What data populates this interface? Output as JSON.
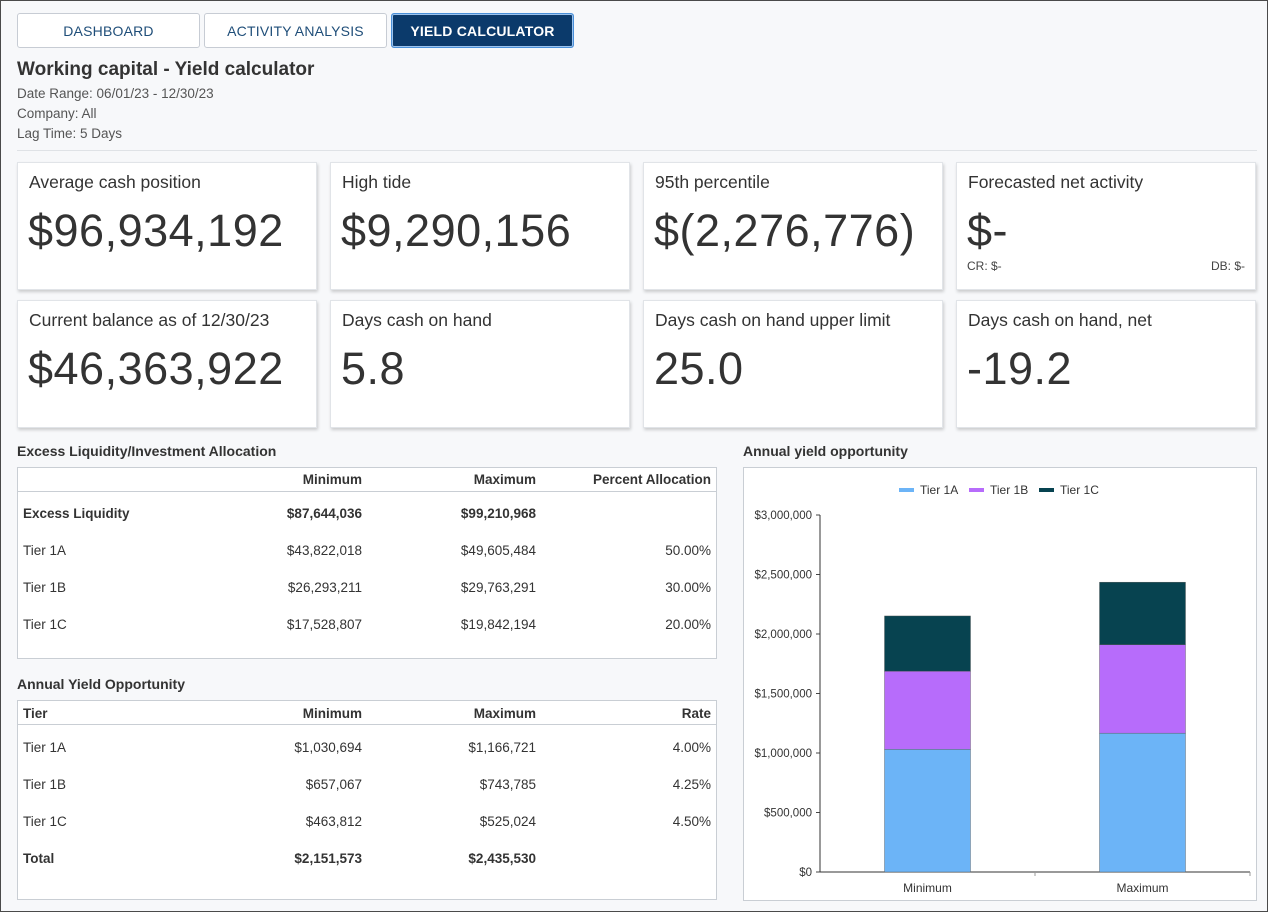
{
  "tabs": [
    {
      "label": "DASHBOARD"
    },
    {
      "label": "ACTIVITY ANALYSIS"
    },
    {
      "label": "YIELD CALCULATOR"
    }
  ],
  "header": {
    "title": "Working capital - Yield calculator",
    "date_range": "Date Range: 06/01/23 - 12/30/23",
    "company": "Company: All",
    "lag_time": "Lag Time: 5 Days"
  },
  "cards": [
    {
      "label": "Average cash position",
      "value": "$96,934,192"
    },
    {
      "label": "High tide",
      "value": "$9,290,156"
    },
    {
      "label": "95th percentile",
      "value": "$(2,276,776)"
    },
    {
      "label": "Forecasted net activity",
      "value": "$-",
      "cr": "CR: $-",
      "db": "DB: $-"
    },
    {
      "label": "Current balance as of 12/30/23",
      "value": "$46,363,922"
    },
    {
      "label": "Days cash on hand",
      "value": "5.8"
    },
    {
      "label": "Days cash on hand upper limit",
      "value": "25.0"
    },
    {
      "label": "Days cash on hand, net",
      "value": "-19.2"
    }
  ],
  "allocation": {
    "title": "Excess Liquidity/Investment Allocation",
    "columns": [
      "",
      "Minimum",
      "Maximum",
      "Percent Allocation"
    ],
    "rows": [
      {
        "name": "Excess Liquidity",
        "min": "$87,644,036",
        "max": "$99,210,968",
        "pct": ""
      },
      {
        "name": "Tier 1A",
        "min": "$43,822,018",
        "max": "$49,605,484",
        "pct": "50.00%"
      },
      {
        "name": "Tier 1B",
        "min": "$26,293,211",
        "max": "$29,763,291",
        "pct": "30.00%"
      },
      {
        "name": "Tier 1C",
        "min": "$17,528,807",
        "max": "$19,842,194",
        "pct": "20.00%"
      }
    ]
  },
  "yield": {
    "title": "Annual Yield Opportunity",
    "columns": [
      "Tier",
      "Minimum",
      "Maximum",
      "Rate"
    ],
    "rows": [
      {
        "name": "Tier 1A",
        "min": "$1,030,694",
        "max": "$1,166,721",
        "rate": "4.00%"
      },
      {
        "name": "Tier 1B",
        "min": "$657,067",
        "max": "$743,785",
        "rate": "4.25%"
      },
      {
        "name": "Tier 1C",
        "min": "$463,812",
        "max": "$525,024",
        "rate": "4.50%"
      },
      {
        "name": "Total",
        "min": "$2,151,573",
        "max": "$2,435,530",
        "rate": ""
      }
    ]
  },
  "chart_title": "Annual yield opportunity",
  "chart_data": {
    "type": "bar",
    "stacked": true,
    "categories": [
      "Minimum",
      "Maximum"
    ],
    "series": [
      {
        "name": "Tier 1A",
        "values": [
          1030694,
          1166721
        ],
        "color": "#6cb4f7"
      },
      {
        "name": "Tier 1B",
        "values": [
          657067,
          743785
        ],
        "color": "#b76cfb"
      },
      {
        "name": "Tier 1C",
        "values": [
          463812,
          525024
        ],
        "color": "#074350"
      }
    ],
    "yticks": [
      "$0",
      "$500,000",
      "$1,000,000",
      "$1,500,000",
      "$2,000,000",
      "$2,500,000",
      "$3,000,000"
    ],
    "ylim": [
      0,
      3000000
    ],
    "legend": "top-center",
    "grid": false
  }
}
